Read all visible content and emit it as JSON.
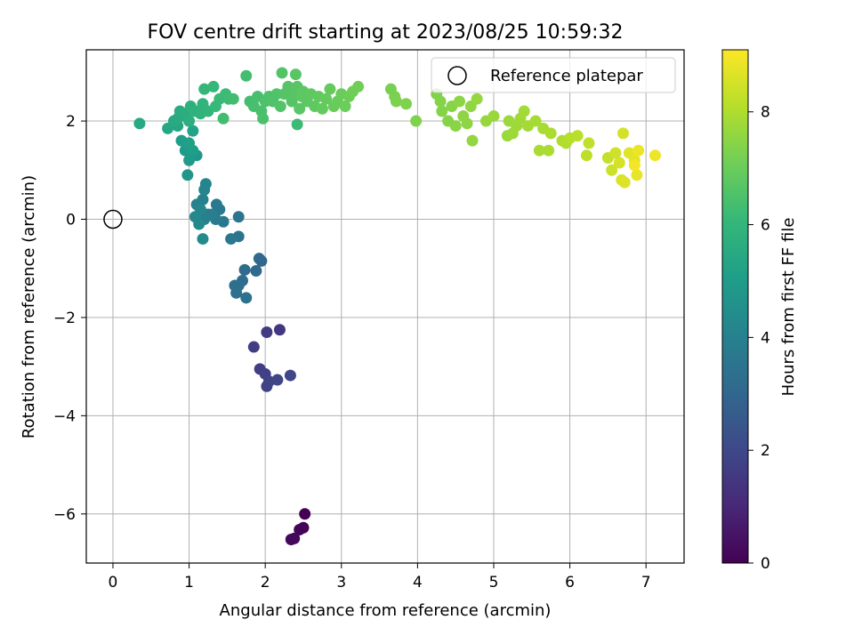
{
  "chart_data": {
    "type": "scatter",
    "title": "FOV centre drift starting at 2023/08/25 10:59:32",
    "xlabel": "Angular distance from reference (arcmin)",
    "ylabel": "Rotation from reference (arcmin)",
    "xlim": [
      -0.35,
      7.5
    ],
    "ylim": [
      -7.0,
      3.45
    ],
    "xticks": [
      0,
      1,
      2,
      3,
      4,
      5,
      6,
      7
    ],
    "xtick_labels": [
      "0",
      "1",
      "2",
      "3",
      "4",
      "5",
      "6",
      "7"
    ],
    "yticks": [
      -6,
      -4,
      -2,
      0,
      2
    ],
    "ytick_labels": [
      "−6",
      "−4",
      "−2",
      "0",
      "2"
    ],
    "grid": true,
    "legend": {
      "position": "top-right",
      "entries": [
        "Reference platepar"
      ]
    },
    "reference_point": {
      "x": 0,
      "y": 0,
      "label": "Reference platepar",
      "marker": "open-circle"
    },
    "colorbar": {
      "label": "Hours from first FF file",
      "colormap": "viridis",
      "range": [
        0,
        9.1
      ],
      "ticks": [
        0,
        2,
        4,
        6,
        8
      ],
      "tick_labels": [
        "0",
        "2",
        "4",
        "6",
        "8"
      ]
    },
    "color_stops": [
      "#440154",
      "#482878",
      "#3e4989",
      "#31688e",
      "#26828e",
      "#1f9e89",
      "#35b779",
      "#6ece58",
      "#b5de2b",
      "#fde725"
    ],
    "series": [
      {
        "points": [
          [
            2.52,
            -6.0,
            0.0
          ],
          [
            2.5,
            -6.28,
            0.05
          ],
          [
            2.45,
            -6.32,
            0.1
          ],
          [
            2.38,
            -6.5,
            0.15
          ],
          [
            2.34,
            -6.52,
            0.2
          ],
          [
            2.19,
            -2.25,
            1.5
          ],
          [
            2.02,
            -2.3,
            1.6
          ],
          [
            1.85,
            -2.6,
            1.65
          ],
          [
            1.93,
            -3.05,
            1.7
          ],
          [
            2.0,
            -3.15,
            1.75
          ],
          [
            2.02,
            -3.4,
            1.8
          ],
          [
            2.05,
            -3.3,
            1.85
          ],
          [
            2.16,
            -3.27,
            1.9
          ],
          [
            2.33,
            -3.18,
            1.95
          ],
          [
            1.95,
            -0.85,
            3.0
          ],
          [
            1.92,
            -0.8,
            3.05
          ],
          [
            1.88,
            -1.05,
            3.1
          ],
          [
            1.73,
            -1.03,
            3.15
          ],
          [
            1.7,
            -1.25,
            3.2
          ],
          [
            1.65,
            -1.35,
            3.25
          ],
          [
            1.6,
            -1.35,
            3.3
          ],
          [
            1.62,
            -1.5,
            3.35
          ],
          [
            1.75,
            -1.6,
            3.4
          ],
          [
            1.65,
            -0.35,
            3.5
          ],
          [
            1.65,
            0.05,
            3.55
          ],
          [
            1.55,
            -0.4,
            3.6
          ],
          [
            1.45,
            -0.05,
            3.65
          ],
          [
            1.4,
            0.2,
            3.7
          ],
          [
            1.36,
            0.3,
            3.75
          ],
          [
            1.35,
            0.0,
            3.8
          ],
          [
            1.3,
            0.1,
            3.85
          ],
          [
            1.25,
            0.1,
            3.9
          ],
          [
            1.2,
            0.0,
            3.95
          ],
          [
            1.18,
            0.4,
            4.0
          ],
          [
            1.1,
            0.3,
            4.05
          ],
          [
            1.2,
            0.6,
            4.1
          ],
          [
            1.22,
            0.72,
            4.15
          ],
          [
            1.15,
            0.2,
            4.2
          ],
          [
            1.08,
            0.05,
            4.25
          ],
          [
            1.13,
            -0.1,
            4.3
          ],
          [
            1.18,
            -0.4,
            4.35
          ],
          [
            0.98,
            0.9,
            4.7
          ],
          [
            1.1,
            1.3,
            4.8
          ],
          [
            1.0,
            1.2,
            4.9
          ],
          [
            0.95,
            1.4,
            5.0
          ],
          [
            1.05,
            1.4,
            5.05
          ],
          [
            0.9,
            1.6,
            5.1
          ],
          [
            1.0,
            1.55,
            5.15
          ],
          [
            1.05,
            1.8,
            5.2
          ],
          [
            1.0,
            2.0,
            5.25
          ],
          [
            0.95,
            2.1,
            5.3
          ],
          [
            0.85,
            1.9,
            5.35
          ],
          [
            0.72,
            1.85,
            5.4
          ],
          [
            0.35,
            1.95,
            5.45
          ],
          [
            0.8,
            2.0,
            5.5
          ],
          [
            0.85,
            2.05,
            5.55
          ],
          [
            0.88,
            2.2,
            5.6
          ],
          [
            0.95,
            2.15,
            5.65
          ],
          [
            1.0,
            2.0,
            5.7
          ],
          [
            1.02,
            2.3,
            5.75
          ],
          [
            1.08,
            2.2,
            5.8
          ],
          [
            1.15,
            2.15,
            5.85
          ],
          [
            1.18,
            2.35,
            5.9
          ],
          [
            1.25,
            2.2,
            5.95
          ],
          [
            1.2,
            2.65,
            6.0
          ],
          [
            1.32,
            2.7,
            6.05
          ],
          [
            1.35,
            2.3,
            6.1
          ],
          [
            1.4,
            2.45,
            6.15
          ],
          [
            1.48,
            2.55,
            6.2
          ],
          [
            1.52,
            2.45,
            6.25
          ],
          [
            1.45,
            2.05,
            6.3
          ],
          [
            1.58,
            2.45,
            6.3
          ],
          [
            1.75,
            2.92,
            6.35
          ],
          [
            1.8,
            2.4,
            6.35
          ],
          [
            1.85,
            2.3,
            6.4
          ],
          [
            1.9,
            2.5,
            6.4
          ],
          [
            1.95,
            2.2,
            6.45
          ],
          [
            1.97,
            2.05,
            6.45
          ],
          [
            2.0,
            2.4,
            6.5
          ],
          [
            2.05,
            2.5,
            6.5
          ],
          [
            2.1,
            2.4,
            6.55
          ],
          [
            2.15,
            2.55,
            6.55
          ],
          [
            2.2,
            2.3,
            6.6
          ],
          [
            2.22,
            2.98,
            6.6
          ],
          [
            2.25,
            2.55,
            6.62
          ],
          [
            2.3,
            2.7,
            6.65
          ],
          [
            2.35,
            2.4,
            6.65
          ],
          [
            2.38,
            2.55,
            6.68
          ],
          [
            2.4,
            2.95,
            6.7
          ],
          [
            2.42,
            2.7,
            6.7
          ],
          [
            2.45,
            2.25,
            6.72
          ],
          [
            2.48,
            2.5,
            6.75
          ],
          [
            2.5,
            2.6,
            6.75
          ],
          [
            2.55,
            2.4,
            6.78
          ],
          [
            2.6,
            2.55,
            6.8
          ],
          [
            2.65,
            2.3,
            6.82
          ],
          [
            2.7,
            2.5,
            6.85
          ],
          [
            2.75,
            2.25,
            6.88
          ],
          [
            2.8,
            2.45,
            6.9
          ],
          [
            2.85,
            2.65,
            6.92
          ],
          [
            2.9,
            2.3,
            6.95
          ],
          [
            2.95,
            2.4,
            6.98
          ],
          [
            3.0,
            2.55,
            7.0
          ],
          [
            3.05,
            2.3,
            7.02
          ],
          [
            3.1,
            2.5,
            7.05
          ],
          [
            3.15,
            2.6,
            7.08
          ],
          [
            3.22,
            2.7,
            7.1
          ],
          [
            2.42,
            1.93,
            6.2
          ],
          [
            3.65,
            2.65,
            7.2
          ],
          [
            3.7,
            2.5,
            7.25
          ],
          [
            3.72,
            2.4,
            7.28
          ],
          [
            3.85,
            2.35,
            7.3
          ],
          [
            3.98,
            2.0,
            7.3
          ],
          [
            4.25,
            2.55,
            7.35
          ],
          [
            4.3,
            2.4,
            7.38
          ],
          [
            4.32,
            2.2,
            7.4
          ],
          [
            4.4,
            2.0,
            7.42
          ],
          [
            4.45,
            2.3,
            7.45
          ],
          [
            4.5,
            1.9,
            7.48
          ],
          [
            4.55,
            2.4,
            7.5
          ],
          [
            4.6,
            2.1,
            7.52
          ],
          [
            4.65,
            1.95,
            7.55
          ],
          [
            4.7,
            2.3,
            7.58
          ],
          [
            4.72,
            1.6,
            7.6
          ],
          [
            4.78,
            2.45,
            7.62
          ],
          [
            4.9,
            2.0,
            7.65
          ],
          [
            5.0,
            2.1,
            7.68
          ],
          [
            5.18,
            1.7,
            7.7
          ],
          [
            5.2,
            2.0,
            7.72
          ],
          [
            5.25,
            1.75,
            7.75
          ],
          [
            5.3,
            1.9,
            7.78
          ],
          [
            5.35,
            2.05,
            7.8
          ],
          [
            5.4,
            2.2,
            7.82
          ],
          [
            5.45,
            1.9,
            7.85
          ],
          [
            5.55,
            2.0,
            7.88
          ],
          [
            5.65,
            1.85,
            7.9
          ],
          [
            5.6,
            1.4,
            7.92
          ],
          [
            5.72,
            1.4,
            7.95
          ],
          [
            5.75,
            1.75,
            7.98
          ],
          [
            5.9,
            1.6,
            8.0
          ],
          [
            5.95,
            1.55,
            8.05
          ],
          [
            6.0,
            1.65,
            8.1
          ],
          [
            6.1,
            1.7,
            8.15
          ],
          [
            6.22,
            1.3,
            8.2
          ],
          [
            6.25,
            1.55,
            8.25
          ],
          [
            6.5,
            1.25,
            8.3
          ],
          [
            6.55,
            1.0,
            8.4
          ],
          [
            6.6,
            1.35,
            8.45
          ],
          [
            6.7,
            1.75,
            8.5
          ],
          [
            6.65,
            1.15,
            8.55
          ],
          [
            6.68,
            0.8,
            8.6
          ],
          [
            6.72,
            0.75,
            8.65
          ],
          [
            6.78,
            1.35,
            8.7
          ],
          [
            6.85,
            1.2,
            8.75
          ],
          [
            6.88,
            0.9,
            8.8
          ],
          [
            6.9,
            1.4,
            8.85
          ],
          [
            7.12,
            1.3,
            8.9
          ],
          [
            6.85,
            1.1,
            8.95
          ]
        ]
      }
    ]
  }
}
